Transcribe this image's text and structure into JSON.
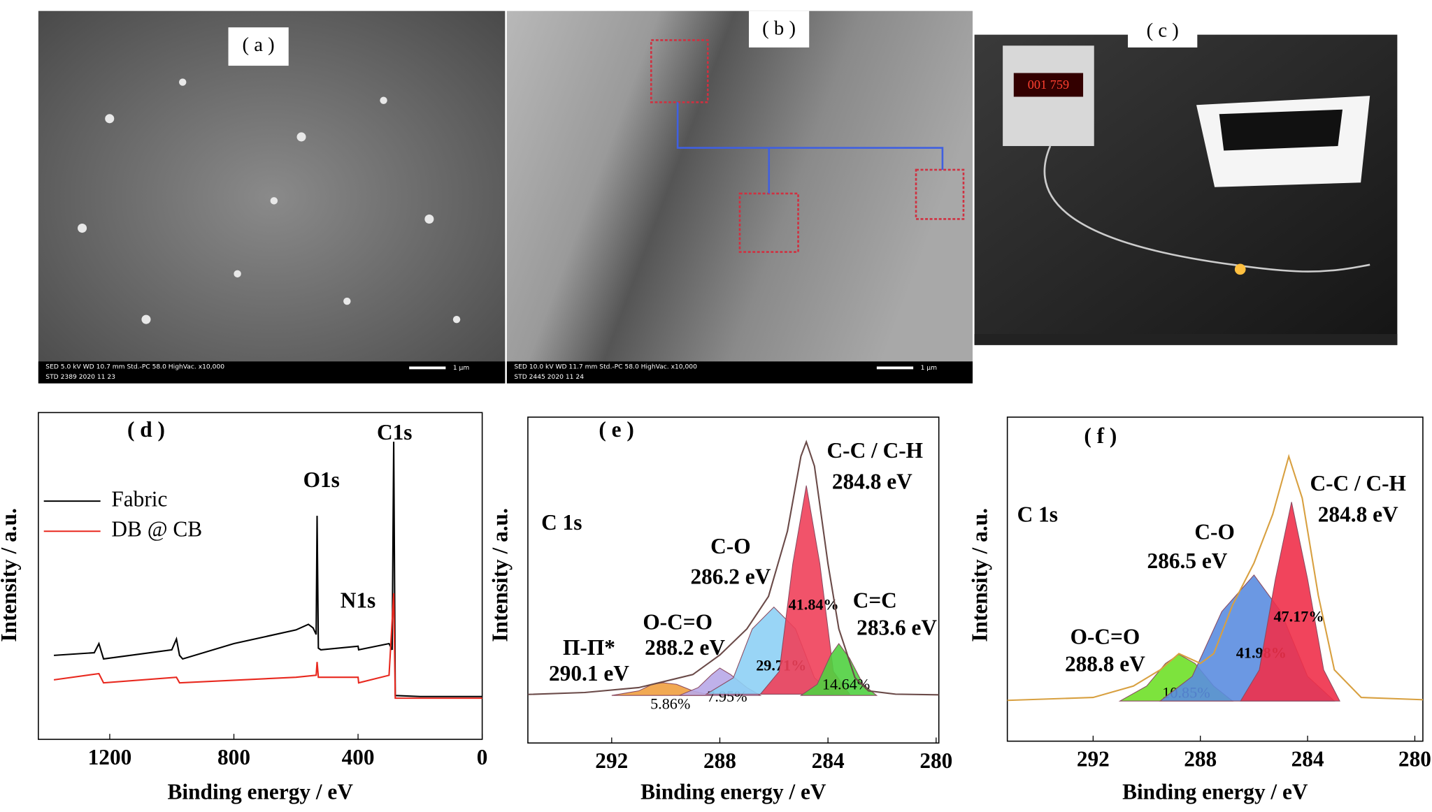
{
  "photos": [
    {
      "label": "( a )",
      "info": [
        "SED 5.0 kV WD 10.7 mm Std.-PC 58.0 HighVac. x10,000",
        "STD 2389 2020 11 23"
      ],
      "scale": "1 μm"
    },
    {
      "label": "( b )",
      "info": [
        "SED 10.0 kV WD 11.7 mm Std.-PC 58.0 HighVac. x10,000",
        "STD 2445 2020 11 24"
      ],
      "scale": "1 μm"
    },
    {
      "label": "( c )",
      "display": "001 759"
    }
  ],
  "chart_data": [
    {
      "type": "line",
      "panel": "( d )",
      "xlabel": "Binding energy / eV",
      "ylabel": "Intensity / a.u.",
      "xlim": [
        1430,
        0
      ],
      "ylim": [
        0,
        100
      ],
      "xticks": [
        1200,
        800,
        400,
        0
      ],
      "legend": "upper left",
      "annotations": [
        "O1s",
        "N1s",
        "C1s"
      ],
      "series": [
        {
          "name": "Fabric",
          "color": "#000000",
          "x": [
            1380,
            1250,
            1235,
            1220,
            1000,
            985,
            975,
            965,
            800,
            600,
            560,
            545,
            535,
            532,
            528,
            520,
            400,
            398,
            300,
            290,
            285,
            280,
            200,
            0
          ],
          "values": [
            25.7,
            26.5,
            29.3,
            24.6,
            27.4,
            30.7,
            25.7,
            24.6,
            29.3,
            33.5,
            35.2,
            34.1,
            32.1,
            68.4,
            27.9,
            27.4,
            28.5,
            27.4,
            29.3,
            27.4,
            91.1,
            13.4,
            13.1,
            13.1
          ]
        },
        {
          "name": "DB @ CB",
          "color": "#e8281e",
          "x": [
            1380,
            1235,
            1220,
            985,
            975,
            600,
            535,
            532,
            528,
            400,
            398,
            300,
            285,
            280,
            0
          ],
          "values": [
            18.2,
            20.1,
            17.3,
            19.0,
            17.3,
            19.0,
            19.6,
            23.7,
            19.0,
            19.0,
            17.3,
            19.6,
            44.7,
            12.6,
            12.6
          ]
        }
      ]
    },
    {
      "type": "area",
      "panel": "( e )",
      "xlabel": "Binding energy / eV",
      "ylabel": "Intensity / a.u.",
      "xlim": [
        295.1,
        279.9
      ],
      "ylim": [
        0,
        100
      ],
      "xticks": [
        292,
        288,
        284,
        280
      ],
      "annotations": [
        "C 1s",
        "Π-Π*",
        "290.1 eV",
        "O-C=O",
        "288.2 eV",
        "C-O",
        "286.2 eV",
        "C-C / C-H",
        "284.8 eV",
        "C=C",
        "283.6 eV"
      ],
      "series": [
        {
          "color": "#f0a040",
          "fill": true,
          "label": "5.86%",
          "x": [
            292,
            291,
            290.5,
            290.1,
            289.6,
            289,
            288.3
          ],
          "values": [
            14.6,
            16,
            18,
            18.5,
            18,
            16,
            14.6
          ]
        },
        {
          "color": "#b8a8e8",
          "fill": true,
          "label": "7.95%",
          "x": [
            289.5,
            288.8,
            288.3,
            288.0,
            287.6,
            287.0,
            286.5
          ],
          "values": [
            14.6,
            17,
            21,
            23,
            21,
            17,
            14.6
          ]
        },
        {
          "color": "#8ed0f5",
          "fill": true,
          "label": "29.71%",
          "x": [
            288.5,
            287.5,
            286.8,
            286.0,
            285.2,
            284.5,
            283.8
          ],
          "values": [
            15,
            20,
            35,
            41.7,
            35,
            20,
            15
          ]
        },
        {
          "color": "#f0405a",
          "fill": true,
          "label": "41.84%",
          "x": [
            286.5,
            285.8,
            285.3,
            284.8,
            284.3,
            283.8,
            283.2
          ],
          "values": [
            15,
            22,
            55,
            79,
            55,
            22,
            15
          ]
        },
        {
          "color": "#50d040",
          "fill": true,
          "label": "14.64%",
          "x": [
            285,
            284.4,
            283.9,
            283.6,
            283.2,
            282.7,
            282.2
          ],
          "values": [
            14.6,
            18,
            27,
            30.5,
            26,
            18,
            14.6
          ]
        },
        {
          "color": "#6a4a48",
          "fill": false,
          "x": [
            295.1,
            293,
            291,
            290,
            289,
            288.5,
            288,
            287,
            286.2,
            285.5,
            285,
            284.8,
            284.5,
            284,
            283.6,
            283,
            282.5,
            281.5,
            279.9
          ],
          "values": [
            14.9,
            15.5,
            17,
            19,
            21,
            24,
            27,
            35,
            45,
            65,
            88,
            92.4,
            85,
            55,
            35,
            20,
            16,
            15,
            14.8
          ]
        }
      ]
    },
    {
      "type": "area",
      "panel": "( f )",
      "xlabel": "Binding energy / eV",
      "ylabel": "Intensity / a.u.",
      "xlim": [
        295.2,
        279.7
      ],
      "ylim": [
        0,
        100
      ],
      "xticks": [
        292,
        288,
        284,
        280
      ],
      "annotations": [
        "C 1s",
        "O-C=O",
        "288.8 eV",
        "C-O",
        "286.5 eV",
        "C-C / C-H",
        "284.8 eV"
      ],
      "series": [
        {
          "color": "#6fe028",
          "fill": true,
          "label": "10.85%",
          "x": [
            291,
            290,
            289.3,
            288.8,
            288.2,
            287.5,
            286.8
          ],
          "values": [
            12.4,
            17,
            24,
            26.8,
            24,
            17,
            12.4
          ]
        },
        {
          "color": "#5b8de0",
          "fill": true,
          "label": "41.98%",
          "x": [
            289.5,
            288.3,
            287.2,
            286.0,
            285.0,
            284.0,
            283.0
          ],
          "values": [
            12.4,
            20,
            40,
            51.3,
            40,
            20,
            12.4
          ]
        },
        {
          "color": "#f0304a",
          "fill": true,
          "label": "47.17%",
          "x": [
            286.5,
            285.8,
            285.2,
            284.6,
            284.0,
            283.4,
            282.8
          ],
          "values": [
            12.4,
            22,
            50,
            73.8,
            50,
            22,
            12.4
          ]
        },
        {
          "color": "#d8a040",
          "fill": false,
          "x": [
            295.2,
            292,
            290.5,
            289.5,
            288.8,
            288,
            287.5,
            286.8,
            286,
            285.3,
            284.7,
            284.2,
            283.6,
            283,
            282,
            279.7
          ],
          "values": [
            12.6,
            13.5,
            17,
            22,
            27,
            24,
            27,
            42,
            55,
            70,
            87.9,
            75,
            45,
            22,
            13.5,
            12.8
          ]
        }
      ]
    }
  ]
}
